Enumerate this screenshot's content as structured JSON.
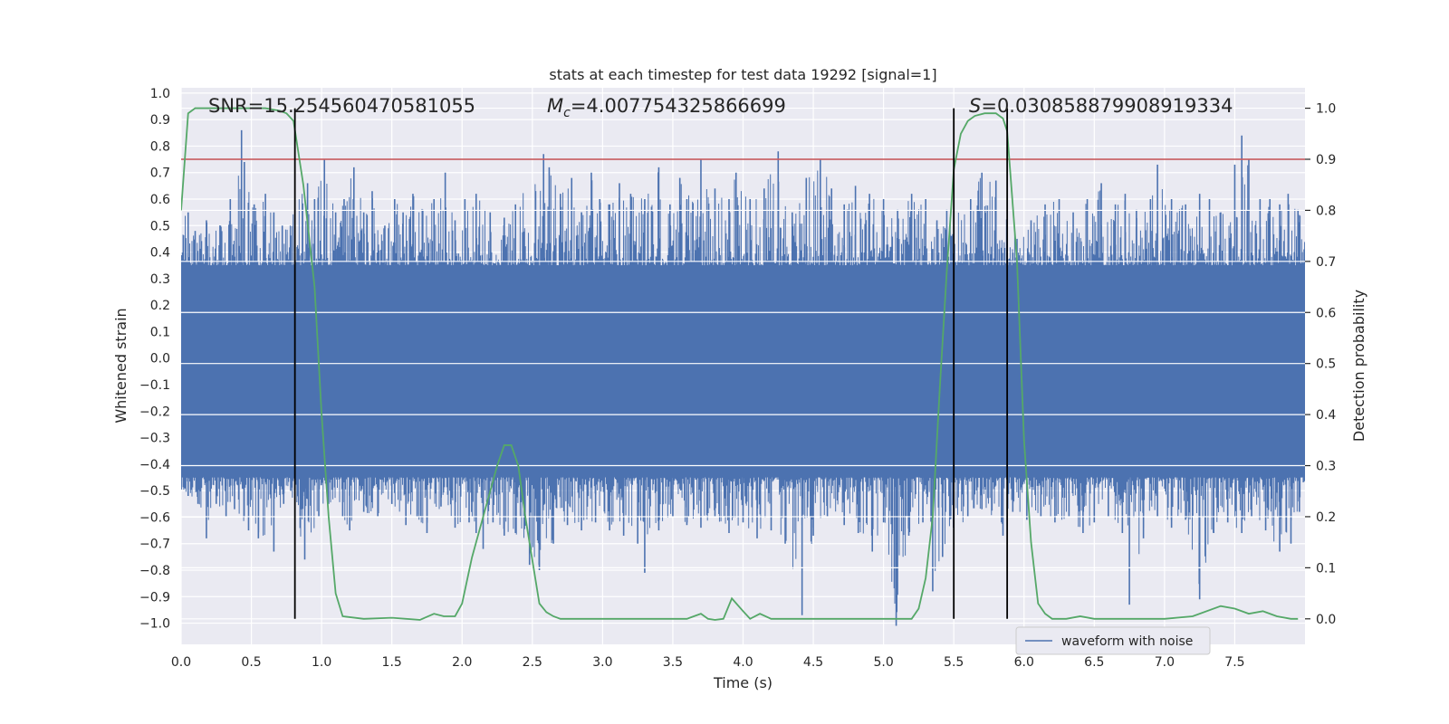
{
  "chart_data": {
    "type": "line",
    "title": "stats at each timestep for test data 19292 [signal=1]",
    "xlabel": "Time (s)",
    "ylabel_left": "Whitened strain",
    "ylabel_right": "Detection probability",
    "xlim": [
      0.0,
      8.0
    ],
    "ylim_left": [
      -1.08,
      1.02
    ],
    "ylim_right": [
      -0.05,
      1.04
    ],
    "x_ticks": [
      0.0,
      0.5,
      1.0,
      1.5,
      2.0,
      2.5,
      3.0,
      3.5,
      4.0,
      4.5,
      5.0,
      5.5,
      6.0,
      6.5,
      7.0,
      7.5
    ],
    "x_tick_labels": [
      "0.0",
      "0.5",
      "1.0",
      "1.5",
      "2.0",
      "2.5",
      "3.0",
      "3.5",
      "4.0",
      "4.5",
      "5.0",
      "5.5",
      "6.0",
      "6.5",
      "7.0",
      "7.5"
    ],
    "y_left_ticks": [
      1.0,
      0.9,
      0.8,
      0.7,
      0.6,
      0.5,
      0.4,
      0.3,
      0.2,
      0.1,
      0.0,
      -0.1,
      -0.2,
      -0.3,
      -0.4,
      -0.5,
      -0.6,
      -0.7,
      -0.8,
      -0.9,
      -1.0
    ],
    "y_left_tick_labels": [
      "1.0",
      "0.9",
      "0.8",
      "0.7",
      "0.6",
      "0.5",
      "0.4",
      "0.3",
      "0.2",
      "0.1",
      "0.0",
      "−0.1",
      "−0.2",
      "−0.3",
      "−0.4",
      "−0.5",
      "−0.6",
      "−0.7",
      "−0.8",
      "−0.9",
      "−1.0"
    ],
    "y_right_ticks": [
      1.0,
      0.9,
      0.8,
      0.7,
      0.6,
      0.5,
      0.4,
      0.3,
      0.2,
      0.1,
      0.0
    ],
    "y_right_tick_labels": [
      "1.0",
      "0.9",
      "0.8",
      "0.7",
      "0.6",
      "0.5",
      "0.4",
      "0.3",
      "0.2",
      "0.1",
      "0.0"
    ],
    "annotations": {
      "snr": "SNR=15.254560470581055",
      "mc_symbol": "M",
      "mc_sub": "c",
      "mc_value": "=4.007754325866699",
      "s_symbol": "S",
      "s_value": "=0.030858879908919334"
    },
    "threshold": {
      "axis": "right",
      "value": 0.9,
      "color": "#c44e52"
    },
    "vertical_lines": [
      0.81,
      5.5,
      5.88
    ],
    "legend": {
      "position": "lower-right",
      "entries": [
        "waveform with noise"
      ]
    },
    "series": [
      {
        "name": "waveform with noise",
        "axis": "left",
        "color": "#4c72b0",
        "envelope_upper": 0.35,
        "envelope_lower": -0.45,
        "peaks": [
          [
            0.05,
            0.55
          ],
          [
            0.1,
            0.48
          ],
          [
            0.18,
            0.52
          ],
          [
            0.28,
            0.5
          ],
          [
            0.35,
            0.6
          ],
          [
            0.43,
            0.86
          ],
          [
            0.45,
            0.74
          ],
          [
            0.52,
            0.58
          ],
          [
            0.6,
            0.62
          ],
          [
            0.66,
            0.55
          ],
          [
            0.72,
            0.5
          ],
          [
            0.9,
            0.66
          ],
          [
            0.95,
            0.6
          ],
          [
            1.02,
            0.75
          ],
          [
            1.1,
            0.55
          ],
          [
            1.16,
            0.6
          ],
          [
            1.23,
            0.72
          ],
          [
            1.3,
            0.55
          ],
          [
            1.36,
            0.63
          ],
          [
            1.45,
            0.5
          ],
          [
            1.52,
            0.6
          ],
          [
            1.58,
            0.55
          ],
          [
            1.65,
            0.62
          ],
          [
            1.72,
            0.56
          ],
          [
            1.8,
            0.6
          ],
          [
            1.88,
            0.7
          ],
          [
            1.95,
            0.52
          ],
          [
            2.02,
            0.6
          ],
          [
            2.1,
            0.62
          ],
          [
            2.2,
            0.55
          ],
          [
            2.3,
            0.53
          ],
          [
            2.38,
            0.58
          ],
          [
            2.58,
            0.77
          ],
          [
            2.62,
            0.72
          ],
          [
            2.7,
            0.62
          ],
          [
            2.78,
            0.68
          ],
          [
            2.85,
            0.55
          ],
          [
            2.92,
            0.7
          ],
          [
            2.98,
            0.6
          ],
          [
            3.05,
            0.58
          ],
          [
            3.12,
            0.66
          ],
          [
            3.2,
            0.62
          ],
          [
            3.3,
            0.6
          ],
          [
            3.4,
            0.72
          ],
          [
            3.48,
            0.58
          ],
          [
            3.55,
            0.68
          ],
          [
            3.6,
            0.6
          ],
          [
            3.7,
            0.75
          ],
          [
            3.8,
            0.64
          ],
          [
            3.9,
            0.6
          ],
          [
            3.95,
            0.7
          ],
          [
            4.05,
            0.6
          ],
          [
            4.15,
            0.64
          ],
          [
            4.25,
            0.78
          ],
          [
            4.35,
            0.55
          ],
          [
            4.45,
            0.68
          ],
          [
            4.55,
            0.75
          ],
          [
            4.63,
            0.64
          ],
          [
            4.72,
            0.58
          ],
          [
            4.8,
            0.65
          ],
          [
            4.9,
            0.62
          ],
          [
            5.0,
            0.6
          ],
          [
            5.1,
            0.56
          ],
          [
            5.2,
            0.62
          ],
          [
            5.3,
            0.6
          ],
          [
            5.38,
            0.52
          ],
          [
            5.45,
            0.56
          ],
          [
            5.62,
            0.6
          ],
          [
            5.7,
            0.7
          ],
          [
            5.8,
            0.67
          ],
          [
            5.95,
            0.45
          ],
          [
            6.05,
            0.52
          ],
          [
            6.15,
            0.58
          ],
          [
            6.25,
            0.6
          ],
          [
            6.35,
            0.55
          ],
          [
            6.45,
            0.6
          ],
          [
            6.55,
            0.66
          ],
          [
            6.65,
            0.58
          ],
          [
            6.72,
            0.62
          ],
          [
            6.8,
            0.56
          ],
          [
            6.9,
            0.6
          ],
          [
            6.95,
            0.73
          ],
          [
            7.05,
            0.6
          ],
          [
            7.15,
            0.58
          ],
          [
            7.25,
            0.62
          ],
          [
            7.32,
            0.6
          ],
          [
            7.4,
            0.55
          ],
          [
            7.5,
            0.73
          ],
          [
            7.55,
            0.84
          ],
          [
            7.6,
            0.75
          ],
          [
            7.68,
            0.6
          ],
          [
            7.75,
            0.6
          ],
          [
            7.82,
            0.58
          ],
          [
            7.88,
            0.62
          ],
          [
            7.95,
            0.56
          ]
        ],
        "troughs": [
          [
            0.05,
            -0.52
          ],
          [
            0.12,
            -0.55
          ],
          [
            0.18,
            -0.68
          ],
          [
            0.25,
            -0.55
          ],
          [
            0.32,
            -0.6
          ],
          [
            0.38,
            -0.57
          ],
          [
            0.48,
            -0.65
          ],
          [
            0.55,
            -0.68
          ],
          [
            0.66,
            -0.73
          ],
          [
            0.73,
            -0.55
          ],
          [
            0.78,
            -0.5
          ],
          [
            0.88,
            -0.76
          ],
          [
            0.98,
            -0.6
          ],
          [
            1.05,
            -0.55
          ],
          [
            1.15,
            -0.6
          ],
          [
            1.2,
            -0.65
          ],
          [
            1.3,
            -0.58
          ],
          [
            1.4,
            -0.6
          ],
          [
            1.5,
            -0.55
          ],
          [
            1.6,
            -0.63
          ],
          [
            1.68,
            -0.6
          ],
          [
            1.75,
            -0.66
          ],
          [
            1.85,
            -0.56
          ],
          [
            1.95,
            -0.64
          ],
          [
            2.05,
            -0.62
          ],
          [
            2.1,
            -0.66
          ],
          [
            2.15,
            -0.72
          ],
          [
            2.22,
            -0.62
          ],
          [
            2.3,
            -0.67
          ],
          [
            2.38,
            -0.66
          ],
          [
            2.48,
            -0.78
          ],
          [
            2.55,
            -0.8
          ],
          [
            2.65,
            -0.7
          ],
          [
            2.75,
            -0.63
          ],
          [
            2.85,
            -0.65
          ],
          [
            2.95,
            -0.62
          ],
          [
            3.05,
            -0.65
          ],
          [
            3.15,
            -0.67
          ],
          [
            3.25,
            -0.7
          ],
          [
            3.3,
            -0.81
          ],
          [
            3.4,
            -0.65
          ],
          [
            3.5,
            -0.6
          ],
          [
            3.6,
            -0.63
          ],
          [
            3.7,
            -0.64
          ],
          [
            3.8,
            -0.6
          ],
          [
            3.9,
            -0.66
          ],
          [
            4.0,
            -0.62
          ],
          [
            4.1,
            -0.68
          ],
          [
            4.2,
            -0.65
          ],
          [
            4.3,
            -0.7
          ],
          [
            4.42,
            -0.97
          ],
          [
            4.5,
            -0.67
          ],
          [
            4.6,
            -0.6
          ],
          [
            4.72,
            -0.63
          ],
          [
            4.82,
            -0.66
          ],
          [
            4.92,
            -0.73
          ],
          [
            5.0,
            -0.62
          ],
          [
            5.09,
            -1.01
          ],
          [
            5.18,
            -0.67
          ],
          [
            5.28,
            -0.62
          ],
          [
            5.35,
            -0.88
          ],
          [
            5.42,
            -0.75
          ],
          [
            5.6,
            -0.6
          ],
          [
            5.7,
            -0.57
          ],
          [
            5.85,
            -0.67
          ],
          [
            5.92,
            -0.58
          ],
          [
            6.02,
            -0.61
          ],
          [
            6.12,
            -0.6
          ],
          [
            6.22,
            -0.62
          ],
          [
            6.32,
            -0.6
          ],
          [
            6.42,
            -0.66
          ],
          [
            6.5,
            -0.62
          ],
          [
            6.6,
            -0.6
          ],
          [
            6.7,
            -0.66
          ],
          [
            6.75,
            -0.93
          ],
          [
            6.85,
            -0.68
          ],
          [
            6.95,
            -0.6
          ],
          [
            7.05,
            -0.64
          ],
          [
            7.15,
            -0.61
          ],
          [
            7.25,
            -0.91
          ],
          [
            7.35,
            -0.66
          ],
          [
            7.45,
            -0.62
          ],
          [
            7.55,
            -0.66
          ],
          [
            7.62,
            -0.6
          ],
          [
            7.72,
            -0.65
          ],
          [
            7.82,
            -0.73
          ],
          [
            7.9,
            -0.7
          ],
          [
            7.96,
            -0.58
          ]
        ]
      },
      {
        "name": "detection probability",
        "axis": "right",
        "color": "#55a868",
        "x": [
          0.0,
          0.05,
          0.1,
          0.2,
          0.3,
          0.4,
          0.5,
          0.6,
          0.7,
          0.75,
          0.8,
          0.87,
          0.95,
          1.0,
          1.05,
          1.1,
          1.15,
          1.3,
          1.5,
          1.7,
          1.8,
          1.87,
          1.95,
          2.0,
          2.07,
          2.15,
          2.25,
          2.3,
          2.35,
          2.4,
          2.45,
          2.55,
          2.6,
          2.65,
          2.7,
          2.8,
          3.0,
          3.2,
          3.4,
          3.6,
          3.7,
          3.75,
          3.8,
          3.86,
          3.92,
          4.0,
          4.05,
          4.12,
          4.2,
          4.25,
          4.3,
          4.4,
          4.5,
          5.0,
          5.2,
          5.25,
          5.3,
          5.35,
          5.4,
          5.45,
          5.5,
          5.55,
          5.6,
          5.65,
          5.72,
          5.8,
          5.85,
          5.88,
          5.95,
          6.0,
          6.05,
          6.1,
          6.15,
          6.2,
          6.3,
          6.4,
          6.5,
          6.6,
          6.8,
          7.0,
          7.2,
          7.4,
          7.5,
          7.6,
          7.7,
          7.8,
          7.9,
          7.95
        ],
        "y": [
          0.8,
          0.99,
          1.0,
          1.0,
          1.0,
          1.0,
          1.0,
          1.0,
          0.995,
          0.99,
          0.975,
          0.85,
          0.65,
          0.4,
          0.2,
          0.05,
          0.005,
          0.0,
          0.002,
          -0.002,
          0.01,
          0.005,
          0.005,
          0.03,
          0.12,
          0.2,
          0.3,
          0.34,
          0.34,
          0.3,
          0.2,
          0.03,
          0.013,
          0.005,
          0.0,
          0.0,
          0.0,
          0.0,
          0.0,
          0.0,
          0.01,
          0.0,
          -0.002,
          0.0,
          0.04,
          0.015,
          0.0,
          0.01,
          0.0,
          0.0,
          0.0,
          0.0,
          0.0,
          0.0,
          0.0,
          0.02,
          0.08,
          0.2,
          0.45,
          0.68,
          0.88,
          0.95,
          0.975,
          0.985,
          0.99,
          0.99,
          0.98,
          0.955,
          0.7,
          0.35,
          0.15,
          0.03,
          0.01,
          0.0,
          0.0,
          0.005,
          0.0,
          0.0,
          0.0,
          0.0,
          0.005,
          0.025,
          0.02,
          0.01,
          0.015,
          0.005,
          0.0,
          0.0
        ]
      }
    ]
  }
}
